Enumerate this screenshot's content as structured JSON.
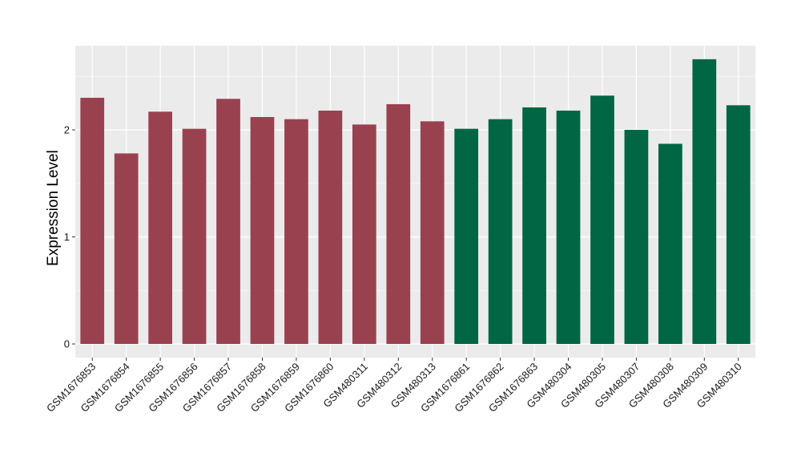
{
  "chart_data": {
    "type": "bar",
    "title": "",
    "xlabel": "",
    "ylabel": "Expression Level",
    "ylim": [
      0,
      2.77
    ],
    "yticks": [
      0,
      1,
      2
    ],
    "grid": true,
    "legend": "none",
    "panel_background": "#ebebeb",
    "grid_color": "#ffffff",
    "categories": [
      "GSM1676853",
      "GSM1676854",
      "GSM1676855",
      "GSM1676856",
      "GSM1676857",
      "GSM1676858",
      "GSM1676859",
      "GSM1676860",
      "GSM480311",
      "GSM480312",
      "GSM480313",
      "GSM1676861",
      "GSM1676862",
      "GSM1676863",
      "GSM480304",
      "GSM480305",
      "GSM480307",
      "GSM480308",
      "GSM480309",
      "GSM480310"
    ],
    "values": [
      2.3,
      1.78,
      2.17,
      2.01,
      2.29,
      2.12,
      2.1,
      2.18,
      2.05,
      2.24,
      2.08,
      2.01,
      2.1,
      2.21,
      2.18,
      2.32,
      2.0,
      1.87,
      2.66,
      2.23
    ],
    "bar_colors": [
      "#9a4150",
      "#9a4150",
      "#9a4150",
      "#9a4150",
      "#9a4150",
      "#9a4150",
      "#9a4150",
      "#9a4150",
      "#9a4150",
      "#9a4150",
      "#9a4150",
      "#006644",
      "#006644",
      "#006644",
      "#006644",
      "#006644",
      "#006644",
      "#006644",
      "#006644",
      "#006644"
    ]
  }
}
